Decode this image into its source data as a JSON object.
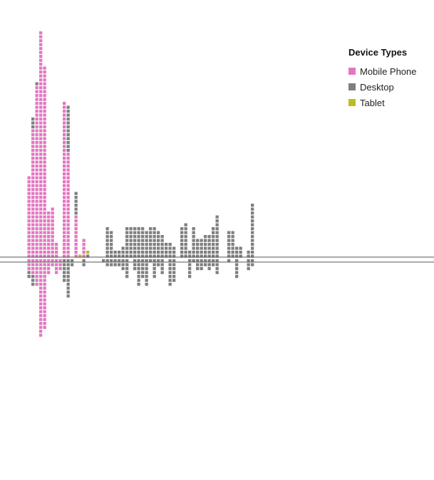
{
  "chart_data": {
    "type": "waffle-bar",
    "legend": {
      "title": "Device Types",
      "items": [
        {
          "label": "Mobile Phone",
          "color": "#e377c2"
        },
        {
          "label": "Desktop",
          "color": "#7f7f7f"
        },
        {
          "label": "Tablet",
          "color": "#bcbd22"
        }
      ]
    },
    "colors": {
      "mobile": "#e377c2",
      "desktop": "#7f7f7f",
      "tablet": "#bcbd22"
    },
    "x": [
      0,
      1,
      2,
      3,
      4,
      5,
      6,
      7,
      8,
      9,
      10,
      11,
      12,
      13,
      14,
      15,
      16,
      17,
      18,
      19,
      20,
      21,
      22,
      23,
      24,
      25,
      26,
      27,
      28,
      29,
      30,
      31,
      32,
      33,
      34,
      35,
      36,
      37,
      38,
      39,
      40,
      41,
      42,
      43,
      44,
      45,
      46,
      47,
      48,
      49,
      50,
      51,
      52,
      53,
      54,
      55,
      56,
      57
    ],
    "series": [
      {
        "key": "mobile",
        "name": "Mobile Phone",
        "above": [
          21,
          33,
          44,
          58,
          49,
          12,
          13,
          4,
          0,
          40,
          27,
          0,
          11,
          0,
          5,
          0,
          0,
          0,
          0,
          0,
          0,
          0,
          0,
          0,
          0,
          0,
          0,
          0,
          0,
          0,
          0,
          0,
          0,
          0,
          0,
          0,
          0,
          0,
          0,
          0,
          0,
          0,
          0,
          0,
          0,
          0,
          0,
          0,
          0,
          0,
          0,
          0,
          0,
          0,
          0,
          0,
          0,
          0
        ],
        "below": [
          3,
          4,
          7,
          20,
          18,
          4,
          2,
          4,
          3,
          0,
          0,
          0,
          0,
          0,
          0,
          0,
          0,
          0,
          0,
          0,
          0,
          0,
          0,
          0,
          0,
          0,
          0,
          0,
          0,
          0,
          0,
          0,
          0,
          0,
          0,
          0,
          0,
          0,
          0,
          0,
          0,
          0,
          0,
          0,
          0,
          0,
          0,
          0,
          0,
          0,
          0,
          0,
          0,
          0,
          0,
          0,
          0,
          0
        ]
      },
      {
        "key": "desktop",
        "name": "Desktop",
        "above": [
          0,
          3,
          1,
          0,
          0,
          0,
          0,
          0,
          0,
          0,
          12,
          0,
          6,
          0,
          0,
          1,
          0,
          0,
          0,
          0,
          8,
          7,
          2,
          2,
          3,
          8,
          8,
          8,
          8,
          8,
          7,
          8,
          8,
          7,
          6,
          4,
          4,
          3,
          0,
          8,
          9,
          2,
          8,
          5,
          5,
          6,
          6,
          8,
          11,
          0,
          0,
          7,
          7,
          3,
          3,
          0,
          2,
          14
        ],
        "below": [
          2,
          3,
          0,
          0,
          0,
          0,
          0,
          0,
          0,
          6,
          10,
          2,
          0,
          0,
          2,
          0,
          0,
          0,
          0,
          1,
          2,
          2,
          2,
          2,
          3,
          5,
          0,
          3,
          7,
          5,
          7,
          1,
          5,
          2,
          4,
          0,
          7,
          6,
          0,
          0,
          0,
          5,
          1,
          3,
          3,
          2,
          3,
          2,
          4,
          0,
          0,
          1,
          0,
          5,
          0,
          0,
          3,
          2
        ]
      },
      {
        "key": "tablet",
        "name": "Tablet",
        "above": [
          0,
          0,
          0,
          0,
          0,
          0,
          0,
          0,
          0,
          0,
          0,
          0,
          0,
          1,
          0,
          1,
          0,
          0,
          0,
          0,
          0,
          0,
          0,
          0,
          0,
          0,
          0,
          0,
          0,
          0,
          0,
          0,
          0,
          0,
          0,
          0,
          0,
          0,
          0,
          0,
          0,
          0,
          0,
          0,
          0,
          0,
          0,
          0,
          0,
          0,
          0,
          0,
          0,
          0,
          0,
          0,
          0,
          0
        ],
        "below": [
          0,
          0,
          0,
          0,
          0,
          0,
          0,
          0,
          0,
          0,
          0,
          0,
          0,
          0,
          0,
          0,
          0,
          0,
          0,
          0,
          0,
          0,
          0,
          0,
          0,
          0,
          0,
          0,
          0,
          0,
          0,
          0,
          0,
          0,
          0,
          0,
          0,
          0,
          0,
          0,
          0,
          0,
          0,
          0,
          0,
          0,
          0,
          0,
          0,
          0,
          0,
          0,
          0,
          0,
          0,
          0,
          0,
          0
        ]
      }
    ]
  }
}
